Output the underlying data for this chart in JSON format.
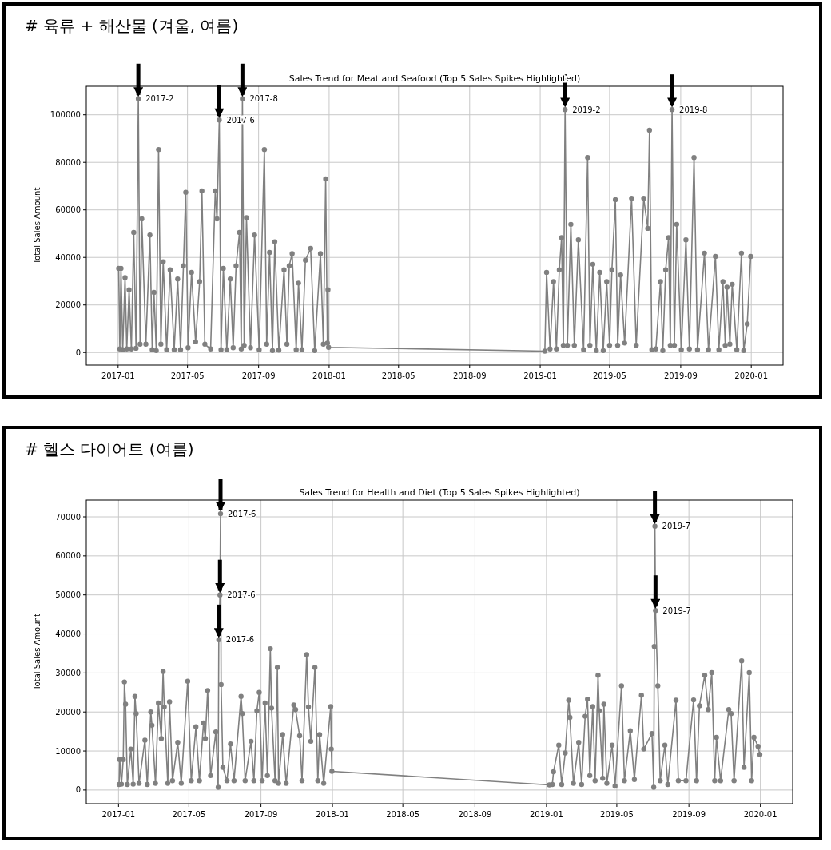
{
  "chart_data": [
    {
      "type": "line",
      "title": "# 육류 + 해산물 (겨울, 여름)",
      "subtitle": "Sales Trend for Meat and Seafood (Top 5 Sales Spikes Highlighted)",
      "ylabel": "Total Sales Amount",
      "xlim": [
        "2016-11-07",
        "2020-02-25"
      ],
      "ylim": [
        -5300,
        112000
      ],
      "xticks": [
        "2017-01",
        "2017-05",
        "2017-09",
        "2018-01",
        "2018-05",
        "2018-09",
        "2019-01",
        "2019-05",
        "2019-09",
        "2020-01"
      ],
      "yticks": [
        0,
        20000,
        40000,
        60000,
        80000,
        100000
      ],
      "grid": true,
      "marker": "circle",
      "series": [
        {
          "color": "#808080",
          "x": [
            "2017-01-02",
            "2017-01-04",
            "2017-01-06",
            "2017-01-09",
            "2017-01-13",
            "2017-01-16",
            "2017-01-20",
            "2017-01-24",
            "2017-01-28",
            "2017-02-01",
            "2017-02-05",
            "2017-02-08",
            "2017-02-11",
            "2017-02-18",
            "2017-02-25",
            "2017-03-01",
            "2017-03-04",
            "2017-03-08",
            "2017-03-12",
            "2017-03-16",
            "2017-03-20",
            "2017-03-26",
            "2017-04-01",
            "2017-04-08",
            "2017-04-14",
            "2017-04-19",
            "2017-04-24",
            "2017-04-28",
            "2017-05-02",
            "2017-05-08",
            "2017-05-15",
            "2017-05-22",
            "2017-05-26",
            "2017-05-31",
            "2017-06-10",
            "2017-06-18",
            "2017-06-21",
            "2017-06-25",
            "2017-06-28",
            "2017-07-02",
            "2017-07-08",
            "2017-07-14",
            "2017-07-19",
            "2017-07-24",
            "2017-07-30",
            "2017-08-02",
            "2017-08-04",
            "2017-08-07",
            "2017-08-11",
            "2017-08-18",
            "2017-08-25",
            "2017-09-02",
            "2017-09-11",
            "2017-09-15",
            "2017-09-20",
            "2017-09-25",
            "2017-09-29",
            "2017-10-06",
            "2017-10-15",
            "2017-10-20",
            "2017-10-24",
            "2017-10-29",
            "2017-11-05",
            "2017-11-09",
            "2017-11-15",
            "2017-11-21",
            "2017-11-30",
            "2017-12-07",
            "2017-12-17",
            "2017-12-22",
            "2017-12-26",
            "2017-12-29",
            "2017-12-30",
            "2017-12-31",
            "2019-01-09",
            "2019-01-12",
            "2019-01-18",
            "2019-01-24",
            "2019-01-29",
            "2019-02-03",
            "2019-02-07",
            "2019-02-10",
            "2019-02-13",
            "2019-02-17",
            "2019-02-23",
            "2019-03-01",
            "2019-03-08",
            "2019-03-17",
            "2019-03-24",
            "2019-03-28",
            "2019-04-02",
            "2019-04-08",
            "2019-04-14",
            "2019-04-20",
            "2019-04-26",
            "2019-05-01",
            "2019-05-05",
            "2019-05-11",
            "2019-05-15",
            "2019-05-20",
            "2019-05-27",
            "2019-06-08",
            "2019-06-16",
            "2019-06-29",
            "2019-07-06",
            "2019-07-09",
            "2019-07-13",
            "2019-07-20",
            "2019-07-28",
            "2019-08-01",
            "2019-08-06",
            "2019-08-11",
            "2019-08-14",
            "2019-08-17",
            "2019-08-21",
            "2019-08-25",
            "2019-09-02",
            "2019-09-10",
            "2019-09-16",
            "2019-09-24",
            "2019-09-30",
            "2019-10-12",
            "2019-10-19",
            "2019-10-31",
            "2019-11-06",
            "2019-11-13",
            "2019-11-17",
            "2019-11-20",
            "2019-11-25",
            "2019-11-29",
            "2019-12-07",
            "2019-12-15",
            "2019-12-19",
            "2019-12-25",
            "2019-12-31"
          ],
          "values": [
            35400,
            1500,
            35400,
            1200,
            31500,
            1500,
            26400,
            1500,
            50500,
            1800,
            106700,
            3500,
            56200,
            3500,
            49400,
            1200,
            25300,
            800,
            85400,
            3500,
            38200,
            1200,
            34800,
            1200,
            30900,
            1200,
            36500,
            67400,
            2000,
            33700,
            4500,
            29800,
            68000,
            3500,
            1500,
            68000,
            56200,
            97800,
            1200,
            35400,
            1200,
            30900,
            2000,
            36500,
            50500,
            1500,
            106700,
            3000,
            56700,
            2000,
            49400,
            1200,
            85400,
            3500,
            42100,
            800,
            46600,
            1000,
            34800,
            3500,
            36500,
            41600,
            1200,
            29200,
            1200,
            38800,
            43800,
            800,
            41600,
            3500,
            73000,
            4000,
            26400,
            2200,
            600,
            33700,
            1500,
            29800,
            1500,
            34800,
            48300,
            3000,
            102200,
            3000,
            53900,
            3000,
            47400,
            1200,
            82000,
            3000,
            37100,
            800,
            33700,
            800,
            29800,
            3000,
            34800,
            64300,
            3000,
            32600,
            4000,
            64900,
            3000,
            64900,
            52200,
            93500,
            1200,
            1500,
            29800,
            800,
            34800,
            48300,
            3000,
            102200,
            3000,
            53900,
            1200,
            47400,
            1500,
            82000,
            1200,
            41800,
            1200,
            40400,
            1200,
            29800,
            3000,
            27500,
            3500,
            28700,
            1200,
            41800,
            800,
            12000,
            40400
          ]
        }
      ],
      "annotations": [
        {
          "text": "2017-2",
          "x": "2017-02-05",
          "y": 106700
        },
        {
          "text": "2017-6",
          "x": "2017-06-25",
          "y": 97800
        },
        {
          "text": "2017-8",
          "x": "2017-08-04",
          "y": 106700
        },
        {
          "text": "2019-2",
          "x": "2019-02-13",
          "y": 102200
        },
        {
          "text": "2019-8",
          "x": "2019-08-17",
          "y": 102200
        }
      ]
    },
    {
      "type": "line",
      "title": "# 헬스 다이어트 (여름)",
      "subtitle": "Sales Trend for Health and Diet (Top 5 Sales Spikes Highlighted)",
      "ylabel": "Total Sales Amount",
      "xlim": [
        "2016-11-07",
        "2020-02-25"
      ],
      "ylim": [
        -3500,
        74300
      ],
      "xticks": [
        "2017-01",
        "2017-05",
        "2017-09",
        "2018-01",
        "2018-05",
        "2018-09",
        "2019-01",
        "2019-05",
        "2019-09",
        "2020-01"
      ],
      "yticks": [
        0,
        10000,
        20000,
        30000,
        40000,
        50000,
        60000,
        70000
      ],
      "grid": true,
      "marker": "circle",
      "series": [
        {
          "color": "#808080",
          "x": [
            "2017-01-02",
            "2017-01-03",
            "2017-01-06",
            "2017-01-09",
            "2017-01-11",
            "2017-01-13",
            "2017-01-16",
            "2017-01-22",
            "2017-01-26",
            "2017-01-29",
            "2017-01-31",
            "2017-02-05",
            "2017-02-15",
            "2017-02-19",
            "2017-02-25",
            "2017-02-27",
            "2017-03-05",
            "2017-03-10",
            "2017-03-15",
            "2017-03-18",
            "2017-03-20",
            "2017-03-26",
            "2017-03-29",
            "2017-04-03",
            "2017-04-12",
            "2017-04-18",
            "2017-04-29",
            "2017-05-05",
            "2017-05-13",
            "2017-05-19",
            "2017-05-26",
            "2017-05-29",
            "2017-06-02",
            "2017-06-07",
            "2017-06-16",
            "2017-06-20",
            "2017-06-21",
            "2017-06-23",
            "2017-06-24",
            "2017-06-25",
            "2017-06-28",
            "2017-07-05",
            "2017-07-11",
            "2017-07-17",
            "2017-07-29",
            "2017-07-31",
            "2017-08-05",
            "2017-08-15",
            "2017-08-20",
            "2017-08-25",
            "2017-08-29",
            "2017-09-03",
            "2017-09-08",
            "2017-09-12",
            "2017-09-17",
            "2017-09-19",
            "2017-09-25",
            "2017-09-29",
            "2017-10-01",
            "2017-10-08",
            "2017-10-14",
            "2017-10-27",
            "2017-10-30",
            "2017-11-06",
            "2017-11-10",
            "2017-11-18",
            "2017-11-21",
            "2017-11-25",
            "2017-12-02",
            "2017-12-07",
            "2017-12-10",
            "2017-12-17",
            "2017-12-29",
            "2017-12-30",
            "2017-12-31",
            "2019-01-06",
            "2019-01-11",
            "2019-01-13",
            "2019-01-22",
            "2019-01-27",
            "2019-02-02",
            "2019-02-08",
            "2019-02-10",
            "2019-02-16",
            "2019-02-25",
            "2019-03-02",
            "2019-03-08",
            "2019-03-12",
            "2019-03-16",
            "2019-03-21",
            "2019-03-25",
            "2019-03-30",
            "2019-04-01",
            "2019-04-07",
            "2019-04-09",
            "2019-04-14",
            "2019-04-23",
            "2019-04-28",
            "2019-05-09",
            "2019-05-14",
            "2019-05-24",
            "2019-05-31",
            "2019-06-12",
            "2019-06-16",
            "2019-06-30",
            "2019-07-03",
            "2019-07-04",
            "2019-07-05",
            "2019-07-06",
            "2019-07-10",
            "2019-07-14",
            "2019-07-22",
            "2019-07-27",
            "2019-08-10",
            "2019-08-14",
            "2019-08-27",
            "2019-09-09",
            "2019-09-14",
            "2019-09-19",
            "2019-09-28",
            "2019-10-04",
            "2019-10-10",
            "2019-10-15",
            "2019-10-18",
            "2019-10-25",
            "2019-11-08",
            "2019-11-12",
            "2019-11-17",
            "2019-11-30",
            "2019-12-04",
            "2019-12-13",
            "2019-12-17",
            "2019-12-21",
            "2019-12-28",
            "2019-12-31"
          ],
          "values": [
            1400,
            7800,
            1500,
            7800,
            27700,
            22000,
            1400,
            10500,
            1500,
            24000,
            19600,
            1700,
            12800,
            1400,
            20000,
            16600,
            1700,
            22300,
            13200,
            30400,
            21300,
            1700,
            22600,
            2400,
            12200,
            1700,
            27900,
            2400,
            16200,
            2400,
            17200,
            13200,
            25500,
            3700,
            14900,
            700,
            38500,
            50000,
            70800,
            27000,
            5800,
            2400,
            11800,
            2400,
            24000,
            19600,
            2400,
            12500,
            2400,
            20300,
            25000,
            2400,
            22300,
            3700,
            36200,
            21000,
            2400,
            31400,
            1700,
            14200,
            1700,
            21800,
            20600,
            13900,
            2400,
            34700,
            21300,
            12500,
            31400,
            2400,
            14200,
            1700,
            21400,
            10500,
            4800,
            1300,
            1400,
            4700,
            11500,
            1400,
            9500,
            23000,
            18600,
            1700,
            12200,
            1400,
            18900,
            23300,
            3700,
            21400,
            2400,
            29400,
            20300,
            3000,
            22000,
            1700,
            11500,
            1000,
            26700,
            2400,
            15200,
            2700,
            24300,
            10500,
            14500,
            700,
            36800,
            67600,
            46000,
            26700,
            2400,
            11500,
            1400,
            23000,
            2400,
            2400,
            23100,
            2400,
            21600,
            29400,
            20600,
            30100,
            2400,
            13500,
            2400,
            20600,
            19600,
            2400,
            33100,
            5800,
            30100,
            2400,
            13500,
            11200,
            9100
          ]
        }
      ],
      "annotations": [
        {
          "text": "2017-6",
          "x": "2017-06-24",
          "y": 70800
        },
        {
          "text": "2017-6",
          "x": "2017-06-23",
          "y": 50000
        },
        {
          "text": "2017-6",
          "x": "2017-06-21",
          "y": 38500
        },
        {
          "text": "2019-7",
          "x": "2019-07-05",
          "y": 67600
        },
        {
          "text": "2019-7",
          "x": "2019-07-06",
          "y": 46000
        }
      ]
    }
  ]
}
